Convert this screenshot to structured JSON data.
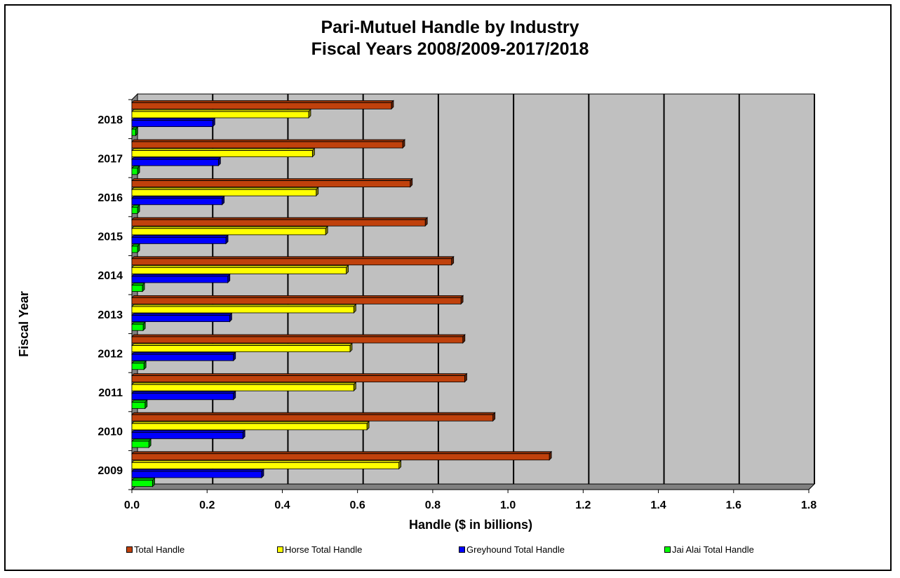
{
  "chart_data": {
    "type": "bar",
    "orientation": "horizontal",
    "title_line1": "Pari-Mutuel Handle by Industry",
    "title_line2": "Fiscal Years 2008/2009-2017/2018",
    "xlabel": "Handle ($ in billions)",
    "ylabel": "Fiscal Year",
    "xlim": [
      0,
      1.8
    ],
    "xticks": [
      "0.0",
      "0.2",
      "0.4",
      "0.6",
      "0.8",
      "1.0",
      "1.2",
      "1.4",
      "1.6",
      "1.8"
    ],
    "categories": [
      "2009",
      "2010",
      "2011",
      "2012",
      "2013",
      "2014",
      "2015",
      "2016",
      "2017",
      "2018"
    ],
    "series": [
      {
        "name": "Total Handle",
        "color": "#C0410C",
        "values": [
          1.11,
          0.96,
          0.885,
          0.88,
          0.875,
          0.85,
          0.78,
          0.74,
          0.72,
          0.69
        ]
      },
      {
        "name": "Horse Total Handle",
        "color": "#FFFF00",
        "values": [
          0.71,
          0.625,
          0.59,
          0.58,
          0.59,
          0.57,
          0.515,
          0.49,
          0.48,
          0.47
        ]
      },
      {
        "name": "Greyhound Total Handle",
        "color": "#0000FF",
        "values": [
          0.345,
          0.295,
          0.27,
          0.27,
          0.26,
          0.255,
          0.25,
          0.24,
          0.23,
          0.215
        ]
      },
      {
        "name": "Jai Alai Total Handle",
        "color": "#00FF00",
        "values": [
          0.055,
          0.045,
          0.035,
          0.032,
          0.03,
          0.028,
          0.015,
          0.015,
          0.015,
          0.01
        ]
      }
    ],
    "grid": true,
    "plot_background": "#C0C0C0",
    "legend_position": "bottom"
  }
}
